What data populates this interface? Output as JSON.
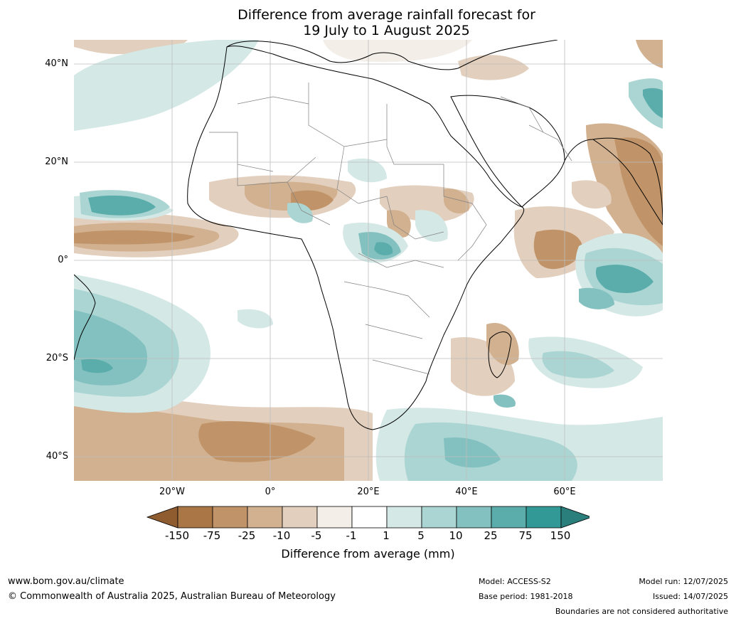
{
  "header": {
    "title_line1": "Difference from average rainfall forecast for",
    "title_line2": "19 July to 1 August 2025"
  },
  "map": {
    "lat_labels": [
      "40°N",
      "20°N",
      "0°",
      "20°S",
      "40°S"
    ],
    "lon_labels": [
      "20°W",
      "0°",
      "20°E",
      "40°E",
      "60°E"
    ]
  },
  "colorbar": {
    "ticks": [
      "-150",
      "-75",
      "-25",
      "-10",
      "-5",
      "-1",
      "1",
      "5",
      "10",
      "25",
      "75",
      "150"
    ],
    "colors": [
      "#ab7646",
      "#c09468",
      "#d2b190",
      "#e2cfbd",
      "#f3eee8",
      "#ffffff",
      "#d4e8e6",
      "#abd5d3",
      "#82c1bf",
      "#5aadab",
      "#339996",
      "#2a7f7c"
    ],
    "title": "Difference from average (mm)"
  },
  "footer": {
    "website": "www.bom.gov.au/climate",
    "copyright": "© Commonwealth of Australia 2025, Australian Bureau of Meteorology",
    "model": "Model: ACCESS-S2",
    "base_period": "Base period: 1981-2018",
    "model_run": "Model run: 12/07/2025",
    "issued": "Issued: 14/07/2025",
    "disclaimer": "Boundaries are not considered authoritative"
  }
}
